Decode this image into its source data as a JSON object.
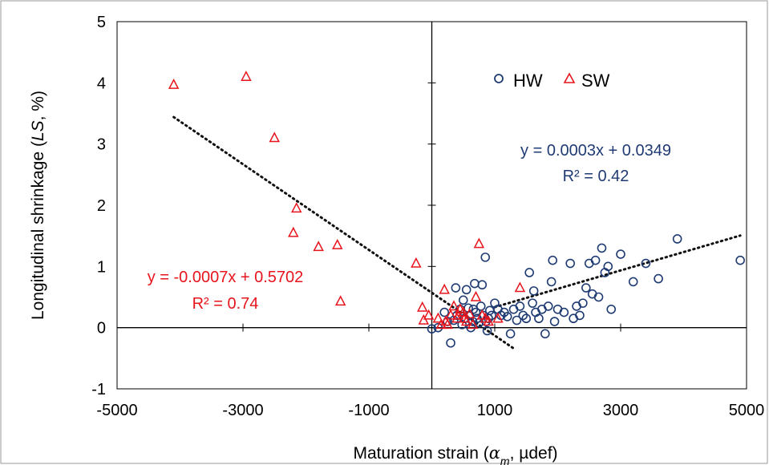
{
  "chart_data": {
    "type": "scatter",
    "xlabel_main": "Maturation strain (",
    "xlabel_symbol": "α",
    "xlabel_sub": "m",
    "xlabel_tail": ", µdef)",
    "ylabel_main": "Longitudinal shrinkage (",
    "ylabel_symbol": "LS",
    "ylabel_tail": ", %)",
    "xlim": [
      -5000,
      5000
    ],
    "ylim": [
      -1,
      5
    ],
    "x_ticks": [
      -5000,
      -3000,
      -1000,
      1000,
      3000,
      5000
    ],
    "x_tick_labels": [
      "-5000",
      "-3000",
      "-1000",
      "1000",
      "3000",
      "5000"
    ],
    "y_ticks": [
      -1,
      0,
      1,
      2,
      3,
      4,
      5
    ],
    "y_tick_labels": [
      "-1",
      "0",
      "1",
      "2",
      "3",
      "4",
      "5"
    ],
    "grid": false,
    "legend_position": "top-right",
    "colors": {
      "HW": "#1f3b73",
      "SW": "#e8141c",
      "trendline": "#111111",
      "axis": "#000000"
    },
    "series": [
      {
        "name": "HW",
        "marker": "circle",
        "points": [
          [
            0,
            -0.02
          ],
          [
            100,
            0.0
          ],
          [
            200,
            0.25
          ],
          [
            250,
            0.1
          ],
          [
            300,
            -0.25
          ],
          [
            350,
            0.12
          ],
          [
            380,
            0.65
          ],
          [
            400,
            0.2
          ],
          [
            450,
            0.3
          ],
          [
            480,
            0.05
          ],
          [
            500,
            0.45
          ],
          [
            520,
            0.15
          ],
          [
            550,
            0.62
          ],
          [
            580,
            0.32
          ],
          [
            600,
            0.2
          ],
          [
            620,
            0.0
          ],
          [
            650,
            0.1
          ],
          [
            660,
            0.3
          ],
          [
            680,
            0.72
          ],
          [
            700,
            0.25
          ],
          [
            720,
            0.15
          ],
          [
            750,
            0.08
          ],
          [
            780,
            0.35
          ],
          [
            800,
            0.7
          ],
          [
            820,
            0.2
          ],
          [
            850,
            1.15
          ],
          [
            860,
            0.1
          ],
          [
            880,
            -0.05
          ],
          [
            900,
            0.15
          ],
          [
            920,
            0.28
          ],
          [
            950,
            0.2
          ],
          [
            1000,
            0.4
          ],
          [
            1050,
            0.3
          ],
          [
            1100,
            0.2
          ],
          [
            1150,
            0.25
          ],
          [
            1200,
            0.18
          ],
          [
            1250,
            -0.1
          ],
          [
            1300,
            0.3
          ],
          [
            1350,
            0.12
          ],
          [
            1400,
            0.35
          ],
          [
            1450,
            0.2
          ],
          [
            1500,
            0.15
          ],
          [
            1550,
            0.9
          ],
          [
            1600,
            0.4
          ],
          [
            1620,
            0.6
          ],
          [
            1650,
            0.25
          ],
          [
            1700,
            0.15
          ],
          [
            1750,
            0.3
          ],
          [
            1800,
            -0.1
          ],
          [
            1850,
            0.35
          ],
          [
            1900,
            0.75
          ],
          [
            1920,
            1.1
          ],
          [
            1950,
            0.1
          ],
          [
            2000,
            0.3
          ],
          [
            2100,
            0.25
          ],
          [
            2200,
            1.05
          ],
          [
            2250,
            0.15
          ],
          [
            2300,
            0.35
          ],
          [
            2350,
            0.2
          ],
          [
            2400,
            0.4
          ],
          [
            2450,
            0.65
          ],
          [
            2500,
            1.05
          ],
          [
            2550,
            0.55
          ],
          [
            2600,
            1.1
          ],
          [
            2650,
            0.5
          ],
          [
            2700,
            1.3
          ],
          [
            2750,
            0.9
          ],
          [
            2800,
            1.0
          ],
          [
            2850,
            0.3
          ],
          [
            3000,
            1.2
          ],
          [
            3200,
            0.75
          ],
          [
            3400,
            1.05
          ],
          [
            3600,
            0.8
          ],
          [
            3900,
            1.45
          ],
          [
            4900,
            1.1
          ]
        ]
      },
      {
        "name": "SW",
        "marker": "triangle",
        "points": [
          [
            -4100,
            3.97
          ],
          [
            -2950,
            4.1
          ],
          [
            -2500,
            3.1
          ],
          [
            -2150,
            1.95
          ],
          [
            -2200,
            1.55
          ],
          [
            -1800,
            1.32
          ],
          [
            -1500,
            1.35
          ],
          [
            -1450,
            0.43
          ],
          [
            -250,
            1.05
          ],
          [
            -150,
            0.33
          ],
          [
            -130,
            0.12
          ],
          [
            -50,
            0.2
          ],
          [
            100,
            0.15
          ],
          [
            150,
            0.05
          ],
          [
            200,
            0.62
          ],
          [
            220,
            0.1
          ],
          [
            250,
            0.05
          ],
          [
            300,
            0.2
          ],
          [
            350,
            0.35
          ],
          [
            400,
            0.15
          ],
          [
            420,
            0.2
          ],
          [
            450,
            0.3
          ],
          [
            500,
            0.25
          ],
          [
            520,
            0.15
          ],
          [
            550,
            0.1
          ],
          [
            600,
            0.22
          ],
          [
            650,
            0.05
          ],
          [
            700,
            0.5
          ],
          [
            750,
            1.37
          ],
          [
            800,
            0.2
          ],
          [
            850,
            0.15
          ],
          [
            900,
            0.1
          ],
          [
            1050,
            0.15
          ],
          [
            1400,
            0.65
          ]
        ]
      }
    ],
    "trendlines": [
      {
        "series": "HW",
        "equation": "y = 0.0003x + 0.0349",
        "r2": "R² = 0.42",
        "slope": 0.0003,
        "intercept": 0.0349,
        "x_range": [
          1000,
          4900
        ]
      },
      {
        "series": "SW",
        "equation": "y = -0.0007x + 0.5702",
        "r2": "R² = 0.74",
        "slope": -0.0007,
        "intercept": 0.5702,
        "x_range": [
          -4100,
          1300
        ]
      }
    ]
  }
}
